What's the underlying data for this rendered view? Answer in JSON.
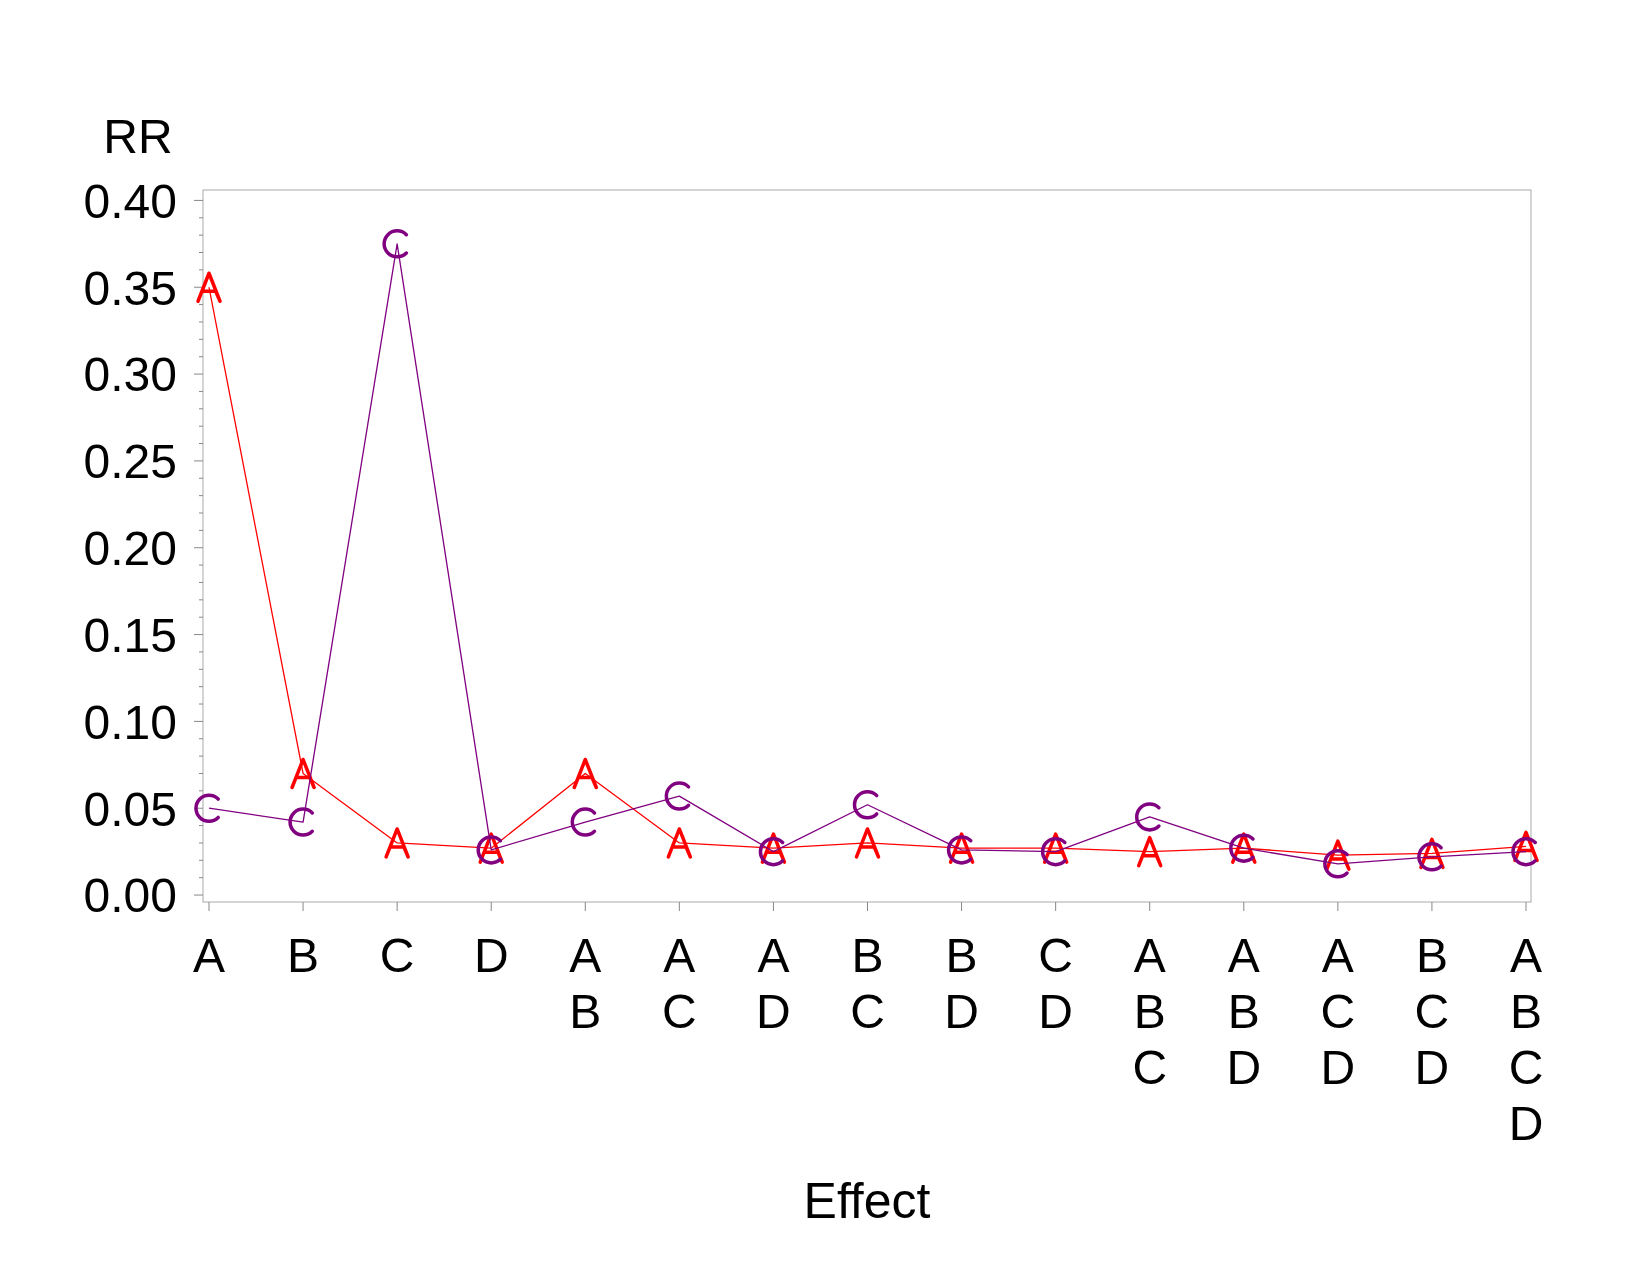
{
  "chart_data": {
    "type": "line",
    "xlabel": "Effect",
    "ylabel": "RR",
    "categories": [
      "A",
      "B",
      "C",
      "D",
      "A\nB",
      "A\nC",
      "A\nD",
      "B\nC",
      "B\nD",
      "C\nD",
      "A\nB\nC",
      "A\nB\nD",
      "A\nC\nD",
      "B\nC\nD",
      "A\nB\nC\nD"
    ],
    "series": [
      {
        "color": "#ff0000",
        "marker": "cross",
        "values": [
          0.35,
          0.07,
          0.03,
          0.027,
          0.07,
          0.03,
          0.027,
          0.03,
          0.027,
          0.027,
          0.025,
          0.027,
          0.023,
          0.024,
          0.028
        ]
      },
      {
        "color": "#800080",
        "marker": "cross",
        "values": [
          0.05,
          0.042,
          0.375,
          0.026,
          0.042,
          0.057,
          0.025,
          0.052,
          0.026,
          0.025,
          0.045,
          0.027,
          0.018,
          0.022,
          0.025
        ]
      }
    ],
    "ylim": [
      -0.004,
      0.406
    ],
    "yticks": [
      {
        "value": 0,
        "label": "0.00"
      },
      {
        "value": 0.05,
        "label": "0.05"
      },
      {
        "value": 0.1,
        "label": "0.10"
      },
      {
        "value": 0.15,
        "label": "0.15"
      },
      {
        "value": 0.2,
        "label": "0.20"
      },
      {
        "value": 0.25,
        "label": "0.25"
      },
      {
        "value": 0.3,
        "label": "0.30"
      },
      {
        "value": 0.35,
        "label": "0.35"
      },
      {
        "value": 0.4,
        "label": "0.40"
      }
    ],
    "grid": false
  }
}
